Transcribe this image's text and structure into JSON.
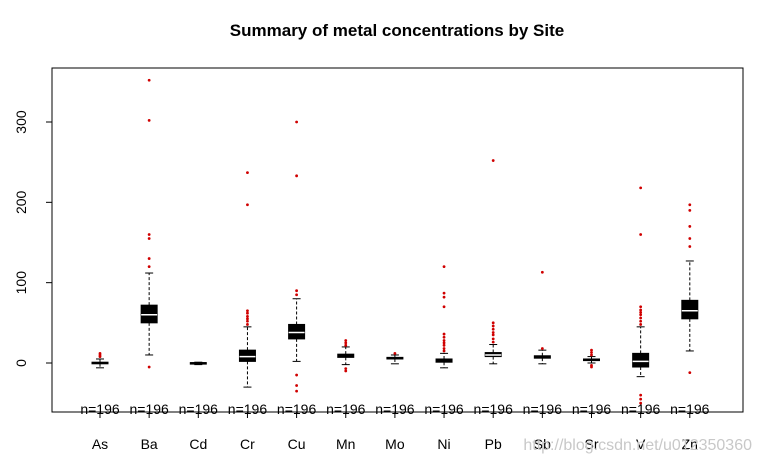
{
  "chart_data": {
    "type": "box",
    "title": "Summary of metal concentrations by Site",
    "xlabel": "",
    "ylabel": "",
    "ylim": [
      -60,
      370
    ],
    "yticks": [
      0,
      100,
      200,
      300
    ],
    "sample_size_label": "n=196",
    "watermark": "http://blog.csdn.net/u012350360",
    "colors": {
      "box": "#000000",
      "outlier": "#d00000",
      "median": "#ffffff"
    },
    "series": [
      {
        "name": "As",
        "n": 196,
        "lower_whisker": -6,
        "q1": -1,
        "median": 0,
        "q3": 1,
        "upper_whisker": 5,
        "outliers": [
          8,
          10,
          12
        ]
      },
      {
        "name": "Ba",
        "n": 196,
        "lower_whisker": 10,
        "q1": 50,
        "median": 60,
        "q3": 72,
        "upper_whisker": 112,
        "outliers": [
          -5,
          120,
          130,
          155,
          160,
          302,
          352
        ]
      },
      {
        "name": "Cd",
        "n": 196,
        "lower_whisker": -2,
        "q1": -1,
        "median": 0,
        "q3": 0.5,
        "upper_whisker": 1,
        "outliers": []
      },
      {
        "name": "Cr",
        "n": 196,
        "lower_whisker": -30,
        "q1": 2,
        "median": 8,
        "q3": 16,
        "upper_whisker": 45,
        "outliers": [
          48,
          52,
          55,
          58,
          62,
          65,
          197,
          237
        ]
      },
      {
        "name": "Cu",
        "n": 196,
        "lower_whisker": 2,
        "q1": 30,
        "median": 38,
        "q3": 48,
        "upper_whisker": 80,
        "outliers": [
          -35,
          -28,
          -15,
          85,
          90,
          233,
          300
        ]
      },
      {
        "name": "Mn",
        "n": 196,
        "lower_whisker": -2,
        "q1": 7,
        "median": 9,
        "q3": 11,
        "upper_whisker": 20,
        "outliers": [
          -10,
          -7,
          22,
          25,
          28
        ]
      },
      {
        "name": "Mo",
        "n": 196,
        "lower_whisker": -1,
        "q1": 5,
        "median": 6,
        "q3": 7,
        "upper_whisker": 10,
        "outliers": [
          12
        ]
      },
      {
        "name": "Ni",
        "n": 196,
        "lower_whisker": -6,
        "q1": 1,
        "median": 3,
        "q3": 5,
        "upper_whisker": 12,
        "outliers": [
          15,
          18,
          22,
          25,
          28,
          32,
          36,
          70,
          82,
          87,
          120
        ]
      },
      {
        "name": "Pb",
        "n": 196,
        "lower_whisker": -1,
        "q1": 8,
        "median": 10,
        "q3": 13,
        "upper_whisker": 23,
        "outliers": [
          26,
          30,
          35,
          38,
          42,
          46,
          50,
          252
        ]
      },
      {
        "name": "Sb",
        "n": 196,
        "lower_whisker": -1,
        "q1": 6,
        "median": 8,
        "q3": 9,
        "upper_whisker": 16,
        "outliers": [
          18,
          113
        ]
      },
      {
        "name": "Sr",
        "n": 196,
        "lower_whisker": 0,
        "q1": 3,
        "median": 4,
        "q3": 5,
        "upper_whisker": 8,
        "outliers": [
          -5,
          -3,
          10,
          13,
          16
        ]
      },
      {
        "name": "V",
        "n": 196,
        "lower_whisker": -17,
        "q1": -5,
        "median": 2,
        "q3": 12,
        "upper_whisker": 45,
        "outliers": [
          -50,
          -45,
          -40,
          48,
          52,
          56,
          60,
          63,
          66,
          70,
          160,
          218
        ]
      },
      {
        "name": "Zn",
        "n": 196,
        "lower_whisker": 15,
        "q1": 55,
        "median": 65,
        "q3": 78,
        "upper_whisker": 127,
        "outliers": [
          -12,
          145,
          155,
          170,
          190,
          197
        ]
      }
    ]
  }
}
